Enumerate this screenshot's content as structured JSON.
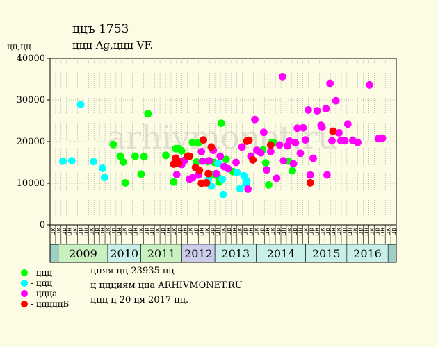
{
  "header": {
    "title": "ццъ 1753",
    "subtitle": "ццц Ag,ццц VF.",
    "y_unit": "цц,цц"
  },
  "watermark": "arhivmonet.ru",
  "legend": [
    {
      "label": "- ццц",
      "color": "#00ff00"
    },
    {
      "label": "- ццц",
      "color": "#00ffff"
    },
    {
      "label": "- ццца",
      "color": "#ff00ff"
    },
    {
      "label": "- цццццБ",
      "color": "#ff0000"
    }
  ],
  "notes": [
    "цняя цц 23935 цц",
    "ц ццциям цца ARHIVMONET.RU",
    "ццц ц 20 ця 2017 цц."
  ],
  "colors": {
    "green": "#00ff00",
    "cyan": "#00ffff",
    "magenta": "#ff00ff",
    "red": "#ff0000",
    "grid": "#8ea08e",
    "plot_bg": "#fcfce4"
  },
  "chart_data": {
    "type": "scatter",
    "ylim": [
      0,
      40000
    ],
    "yticks": [
      "0",
      "10000",
      "20000",
      "30000",
      "40000"
    ],
    "categories": [
      "цк",
      "цк",
      "цр",
      "цн",
      "цк",
      "цр",
      "цн",
      "цк",
      "цр",
      "цн",
      "цк",
      "цр",
      "цн",
      "цк",
      "цр",
      "цн",
      "цк",
      "цр",
      "цн",
      "цк",
      "цр",
      "цн",
      "цк",
      "цр",
      "цн",
      "цк",
      "цр",
      "цн",
      "цк",
      "цр",
      "цн",
      "цк",
      "цр",
      "цн",
      "цк",
      "цр",
      "цн",
      "цк",
      "цр",
      "цн",
      "цк",
      "цр",
      "цн",
      "цк",
      "цр",
      "цн",
      "цк",
      "цр",
      "цн",
      "цк",
      "цр",
      "цн",
      "цк",
      "цр",
      "цн",
      "цк",
      "цр",
      "цн",
      "цк",
      "цр",
      "цн",
      "цк",
      "цр"
    ],
    "years": [
      {
        "label": "2009",
        "start": 1,
        "end": 7,
        "color": "#c8f0c0"
      },
      {
        "label": "2010",
        "start": 7,
        "end": 11,
        "color": "#c8f0e8"
      },
      {
        "label": "2011",
        "start": 11,
        "end": 16,
        "color": "#c8f0c0"
      },
      {
        "label": "2012",
        "start": 16,
        "end": 20,
        "color": "#ccccec"
      },
      {
        "label": "2013",
        "start": 20,
        "end": 25,
        "color": "#c8f0e8"
      },
      {
        "label": "2014",
        "start": 25,
        "end": 31,
        "color": "#c8f0e8"
      },
      {
        "label": "2015",
        "start": 31,
        "end": 36,
        "color": "#c8f0e8"
      },
      {
        "label": "2016",
        "start": 36,
        "end": 41,
        "color": "#c8f0e8"
      }
    ],
    "series": [
      {
        "color": "green",
        "points": [
          [
            6.4,
            19300
          ],
          [
            7.1,
            16500
          ],
          [
            7.4,
            15100
          ],
          [
            7.6,
            10100
          ],
          [
            8.6,
            16500
          ],
          [
            9.2,
            12200
          ],
          [
            9.5,
            16400
          ],
          [
            9.9,
            26700
          ],
          [
            11.7,
            16700
          ],
          [
            12.5,
            10300
          ],
          [
            12.7,
            18300
          ],
          [
            13.0,
            18300
          ],
          [
            13.3,
            17800
          ],
          [
            13.9,
            16500
          ],
          [
            14.4,
            19800
          ],
          [
            14.8,
            15100
          ],
          [
            15.0,
            19700
          ],
          [
            15.9,
            15200
          ],
          [
            16.4,
            12000
          ],
          [
            16.6,
            15000
          ],
          [
            16.9,
            11800
          ],
          [
            17.1,
            10300
          ],
          [
            17.3,
            24400
          ],
          [
            17.8,
            15700
          ],
          [
            18.5,
            12800
          ],
          [
            21.5,
            18000
          ],
          [
            21.8,
            14900
          ],
          [
            22.1,
            9600
          ],
          [
            22.4,
            19700
          ],
          [
            22.6,
            19700
          ],
          [
            24.1,
            15300
          ],
          [
            24.5,
            13000
          ]
        ]
      },
      {
        "color": "cyan",
        "points": [
          [
            1.3,
            15300
          ],
          [
            2.2,
            15400
          ],
          [
            3.1,
            28900
          ],
          [
            4.4,
            15200
          ],
          [
            5.3,
            13600
          ],
          [
            5.5,
            11400
          ],
          [
            16.0,
            10800
          ],
          [
            16.3,
            9300
          ],
          [
            17.0,
            14800
          ],
          [
            17.4,
            11000
          ],
          [
            17.5,
            7300
          ],
          [
            18.9,
            12600
          ],
          [
            19.2,
            8700
          ],
          [
            19.6,
            11800
          ],
          [
            19.8,
            9800
          ],
          [
            19.9,
            10600
          ]
        ]
      },
      {
        "color": "magenta",
        "points": [
          [
            12.8,
            12100
          ],
          [
            13.3,
            14500
          ],
          [
            13.6,
            15500
          ],
          [
            14.1,
            11000
          ],
          [
            14.4,
            11300
          ],
          [
            15.0,
            12000
          ],
          [
            15.3,
            17600
          ],
          [
            15.4,
            15300
          ],
          [
            16.1,
            15400
          ],
          [
            16.5,
            17900
          ],
          [
            16.8,
            12300
          ],
          [
            17.2,
            16500
          ],
          [
            17.6,
            14000
          ],
          [
            18.0,
            13500
          ],
          [
            18.8,
            15000
          ],
          [
            19.4,
            18700
          ],
          [
            20.0,
            8600
          ],
          [
            20.3,
            16500
          ],
          [
            20.7,
            25300
          ],
          [
            20.9,
            17900
          ],
          [
            21.3,
            17300
          ],
          [
            21.6,
            22200
          ],
          [
            21.9,
            13200
          ],
          [
            22.3,
            17600
          ],
          [
            22.9,
            11200
          ],
          [
            23.2,
            19200
          ],
          [
            23.5,
            35600
          ],
          [
            23.6,
            15400
          ],
          [
            24.0,
            19000
          ],
          [
            24.2,
            20100
          ],
          [
            24.6,
            14700
          ],
          [
            24.8,
            19700
          ],
          [
            25.0,
            23200
          ],
          [
            25.3,
            17200
          ],
          [
            25.6,
            23300
          ],
          [
            25.8,
            20400
          ],
          [
            26.1,
            27600
          ],
          [
            26.3,
            12000
          ],
          [
            26.6,
            16000
          ],
          [
            27.0,
            27400
          ],
          [
            27.4,
            23900
          ],
          [
            27.5,
            23400
          ],
          [
            27.9,
            27900
          ],
          [
            28.0,
            12000
          ],
          [
            28.3,
            34000
          ],
          [
            28.5,
            20200
          ],
          [
            28.9,
            29800
          ],
          [
            29.2,
            22100
          ],
          [
            29.4,
            20200
          ],
          [
            29.8,
            20200
          ],
          [
            30.1,
            24200
          ],
          [
            30.6,
            20300
          ],
          [
            31.1,
            19800
          ],
          [
            32.3,
            33600
          ],
          [
            33.2,
            20700
          ],
          [
            33.6,
            20800
          ]
        ]
      },
      {
        "color": "red",
        "points": [
          [
            12.5,
            14600
          ],
          [
            12.7,
            16000
          ],
          [
            12.9,
            15400
          ],
          [
            13.0,
            14800
          ],
          [
            13.9,
            16500
          ],
          [
            14.1,
            16500
          ],
          [
            14.7,
            13800
          ],
          [
            15.1,
            13100
          ],
          [
            15.3,
            10000
          ],
          [
            15.5,
            20400
          ],
          [
            15.8,
            10100
          ],
          [
            16.0,
            12300
          ],
          [
            16.3,
            18700
          ],
          [
            19.9,
            20100
          ],
          [
            20.1,
            20300
          ],
          [
            20.5,
            15600
          ],
          [
            22.3,
            19200
          ],
          [
            26.3,
            10100
          ],
          [
            28.6,
            22500
          ]
        ]
      }
    ]
  }
}
